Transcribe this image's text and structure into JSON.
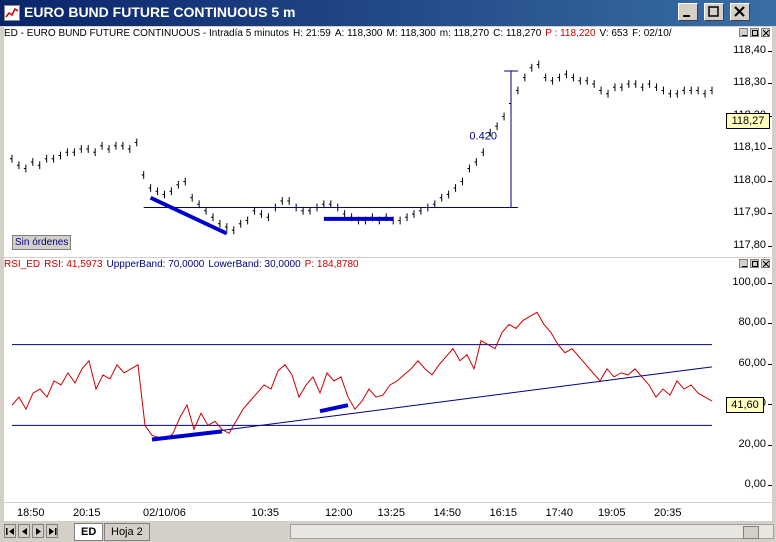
{
  "window": {
    "title": "EURO BUND FUTURE CONTINUOUS 5 m"
  },
  "price_pane": {
    "header": [
      {
        "text": "ED - EURO BUND FUTURE CONTINUOUS - Intradía 5 minutos",
        "color": "#000000"
      },
      {
        "text": "H: 21:59",
        "color": "#000000"
      },
      {
        "text": "A: 118,300",
        "color": "#000000"
      },
      {
        "text": "M: 118,300",
        "color": "#000000"
      },
      {
        "text": "m: 118,270",
        "color": "#000000"
      },
      {
        "text": "C: 118,270",
        "color": "#000000"
      },
      {
        "text": "P : 118,220",
        "color": "#cc0000"
      },
      {
        "text": "V: 653",
        "color": "#000000"
      },
      {
        "text": "F: 02/10/",
        "color": "#000000"
      }
    ],
    "last_price": "118,27",
    "orders_label": "Sin órdenes",
    "annotation": "0.420"
  },
  "rsi_pane": {
    "header": [
      {
        "text": "RSI_ED",
        "color": "#cc0000"
      },
      {
        "text": "RSI: 41,5973",
        "color": "#cc0000"
      },
      {
        "text": "UppperBand: 70,0000",
        "color": "#000080"
      },
      {
        "text": "LowerBand: 30,0000",
        "color": "#000080"
      },
      {
        "text": "P: 184,8780",
        "color": "#cc0000"
      }
    ],
    "last_value": "41,60"
  },
  "tabs": {
    "active": "ED",
    "other": "Hoja 2"
  },
  "colors": {
    "price": "#000000",
    "rsi": "#cc0000",
    "band": "#000080",
    "trend_thick": "#0000cc",
    "titlebar": "#0a246a"
  },
  "chart_data": [
    {
      "type": "line",
      "title": "EURO BUND FUTURE CONTINUOUS 5 m",
      "ylabel": "",
      "ylim": [
        117.78,
        118.42
      ],
      "y_ticks": [
        "117,80",
        "117,90",
        "118,00",
        "118,10",
        "118,20",
        "118,30",
        "118,40"
      ],
      "x_ticks": [
        "18:50",
        "20:15",
        "02/10/06",
        "10:35",
        "12:00",
        "13:25",
        "14:50",
        "16:15",
        "17:40",
        "19:05",
        "20:35"
      ],
      "series": [
        {
          "name": "ED",
          "values": [
            118.07,
            118.05,
            118.04,
            118.06,
            118.05,
            118.07,
            118.07,
            118.08,
            118.09,
            118.09,
            118.1,
            118.1,
            118.09,
            118.11,
            118.1,
            118.11,
            118.11,
            118.1,
            118.12,
            118.02,
            117.98,
            117.97,
            117.96,
            117.97,
            117.99,
            118.0,
            117.95,
            117.93,
            117.91,
            117.89,
            117.87,
            117.86,
            117.85,
            117.87,
            117.88,
            117.91,
            117.9,
            117.89,
            117.92,
            117.94,
            117.94,
            117.92,
            117.91,
            117.91,
            117.92,
            117.93,
            117.93,
            117.92,
            117.9,
            117.89,
            117.88,
            117.88,
            117.89,
            117.88,
            117.89,
            117.88,
            117.88,
            117.89,
            117.9,
            117.91,
            117.92,
            117.93,
            117.95,
            117.96,
            117.98,
            118.0,
            118.04,
            118.06,
            118.09,
            118.15,
            118.17,
            118.2,
            118.24,
            118.28,
            118.32,
            118.35,
            118.36,
            118.32,
            118.31,
            118.32,
            118.33,
            118.32,
            118.31,
            118.31,
            118.3,
            118.28,
            118.27,
            118.29,
            118.29,
            118.3,
            118.3,
            118.29,
            118.3,
            118.29,
            118.28,
            118.27,
            118.27,
            118.28,
            118.28,
            118.28,
            118.27,
            118.28
          ]
        }
      ],
      "annotations": [
        "0.420"
      ]
    },
    {
      "type": "line",
      "title": "RSI_ED",
      "ylim": [
        -6,
        104
      ],
      "y_ticks": [
        "0,00",
        "20,00",
        "40,00",
        "60,00",
        "80,00",
        "100,00"
      ],
      "bands": {
        "upper": 70,
        "lower": 30
      },
      "series": [
        {
          "name": "RSI_ED",
          "values": [
            40,
            44,
            38,
            46,
            48,
            44,
            52,
            50,
            56,
            51,
            58,
            62,
            48,
            55,
            53,
            60,
            56,
            58,
            60,
            30,
            25,
            24,
            23,
            26,
            34,
            40,
            28,
            36,
            30,
            32,
            28,
            26,
            32,
            38,
            42,
            46,
            50,
            48,
            57,
            60,
            55,
            44,
            50,
            54,
            46,
            56,
            52,
            54,
            44,
            38,
            42,
            48,
            44,
            45,
            50,
            52,
            55,
            58,
            62,
            58,
            55,
            60,
            64,
            68,
            62,
            65,
            58,
            72,
            70,
            68,
            76,
            80,
            78,
            82,
            84,
            86,
            80,
            76,
            70,
            66,
            68,
            64,
            60,
            56,
            52,
            58,
            54,
            56,
            55,
            58,
            54,
            50,
            44,
            48,
            45,
            52,
            48,
            50,
            46,
            44,
            42
          ]
        }
      ]
    }
  ]
}
